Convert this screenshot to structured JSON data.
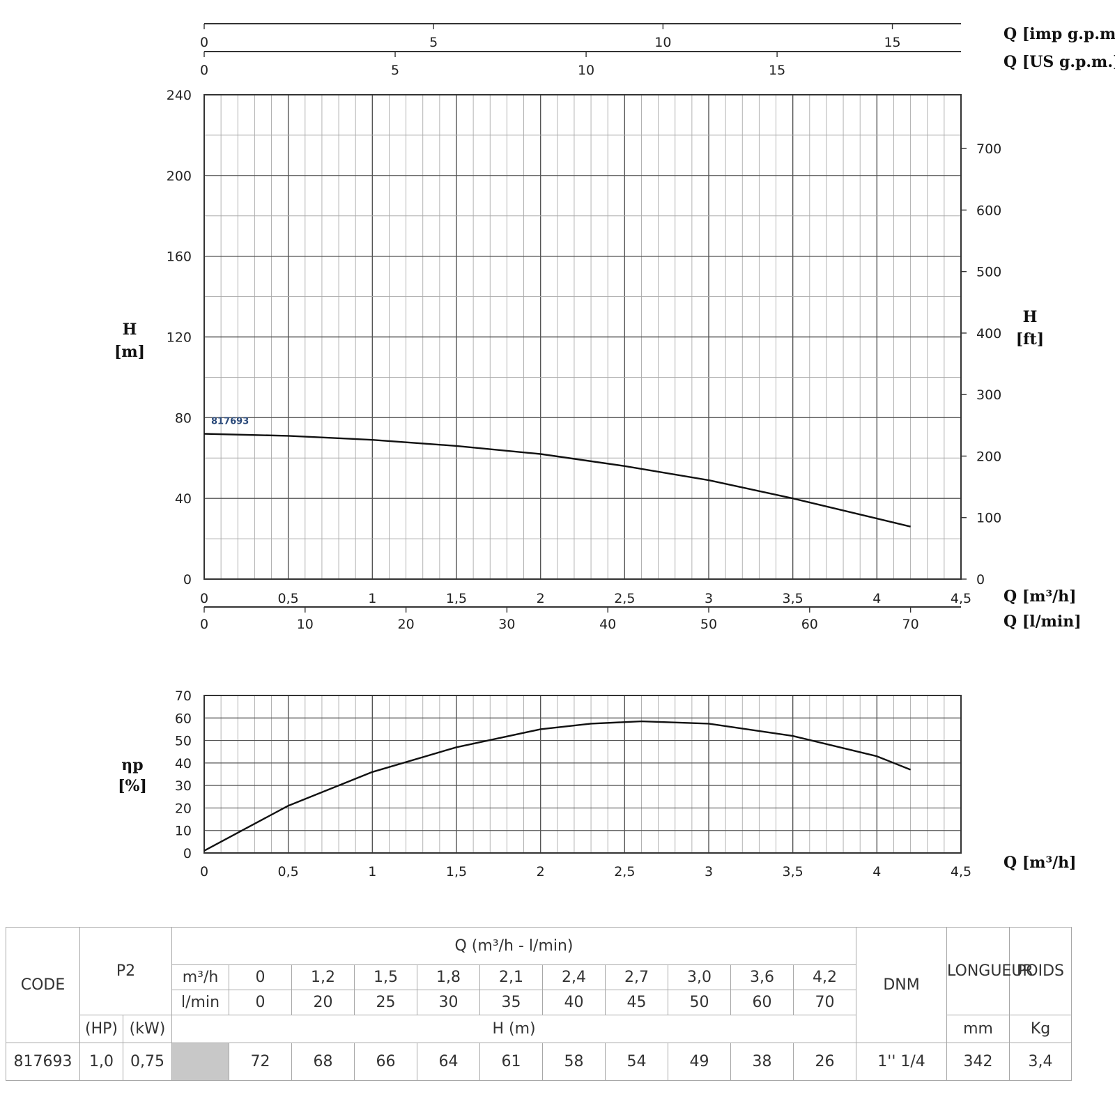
{
  "chart_data": [
    {
      "type": "line",
      "xlabel": "Q [m³/h]",
      "ylabel": "H\n[m]",
      "ylabel_right": "H\n[ft]",
      "xlim": [
        0,
        4.5
      ],
      "ylim": [
        0,
        240
      ],
      "y_ticks": [
        "0",
        "40",
        "80",
        "120",
        "160",
        "200",
        "240"
      ],
      "x_ticks": [
        "0",
        "0,5",
        "1",
        "1,5",
        "2",
        "2,5",
        "3",
        "3,5",
        "4",
        "4,5"
      ],
      "secondary_axes": {
        "lmin": {
          "label": "Q [l/min]",
          "ticks": [
            "0",
            "10",
            "20",
            "30",
            "40",
            "50",
            "60",
            "70"
          ]
        },
        "us_gpm": {
          "label": "Q [US g.p.m.]",
          "ticks": [
            "0",
            "5",
            "10",
            "15"
          ]
        },
        "imp_gpm": {
          "label": "Q [imp g.p.m]",
          "ticks": [
            "0",
            "5",
            "10",
            "15"
          ]
        },
        "h_ft": {
          "label": "H [ft]",
          "ticks": [
            "0",
            "100",
            "200",
            "300",
            "400",
            "500",
            "600",
            "700"
          ]
        }
      },
      "grid": true,
      "series": [
        {
          "name": "817693",
          "color": "#111111",
          "x": [
            0,
            0.5,
            1.0,
            1.5,
            2.0,
            2.5,
            3.0,
            3.5,
            4.0,
            4.2
          ],
          "y": [
            72,
            71,
            69,
            66,
            62,
            56,
            49,
            40,
            30,
            26
          ]
        }
      ]
    },
    {
      "type": "line",
      "xlabel": "Q [m³/h]",
      "ylabel": "ηp\n[%]",
      "xlim": [
        0,
        4.5
      ],
      "ylim": [
        0,
        70
      ],
      "y_ticks": [
        "0",
        "10",
        "20",
        "30",
        "40",
        "50",
        "60",
        "70"
      ],
      "x_ticks": [
        "0",
        "0,5",
        "1",
        "1,5",
        "2",
        "2,5",
        "3",
        "3,5",
        "4",
        "4,5"
      ],
      "grid": true,
      "series": [
        {
          "color": "#111111",
          "x": [
            0,
            0.5,
            1.0,
            1.5,
            2.0,
            2.3,
            2.6,
            3.0,
            3.5,
            4.0,
            4.2
          ],
          "y": [
            1,
            21,
            36,
            47,
            55,
            57.5,
            58.5,
            57.5,
            52,
            43,
            37
          ]
        }
      ]
    }
  ],
  "table": {
    "code_hdr": "CODE",
    "p2_hdr": "P2",
    "q_hdr": "Q (m³/h - l/min)",
    "m3h_hdr": "m³/h",
    "lmin_hdr": "l/min",
    "m3h_vals": [
      "0",
      "1,2",
      "1,5",
      "1,8",
      "2,1",
      "2,4",
      "2,7",
      "3,0",
      "3,6",
      "4,2"
    ],
    "lmin_vals": [
      "0",
      "20",
      "25",
      "30",
      "35",
      "40",
      "45",
      "50",
      "60",
      "70"
    ],
    "h_hdr": "H (m)",
    "dnm_hdr": "DNM",
    "longueur_hdr": "LONGUEUR",
    "poids_hdr": "POIDS",
    "hp_hdr": "(HP)",
    "kw_hdr": "(kW)",
    "mm_hdr": "mm",
    "kg_hdr": "Kg",
    "row": {
      "code": "817693",
      "hp": "1,0",
      "kw": "0,75",
      "h_vals": [
        "72",
        "68",
        "66",
        "64",
        "61",
        "58",
        "54",
        "49",
        "38",
        "26"
      ],
      "dnm": "1'' 1/4",
      "longueur": "342",
      "poids": "3,4"
    }
  }
}
